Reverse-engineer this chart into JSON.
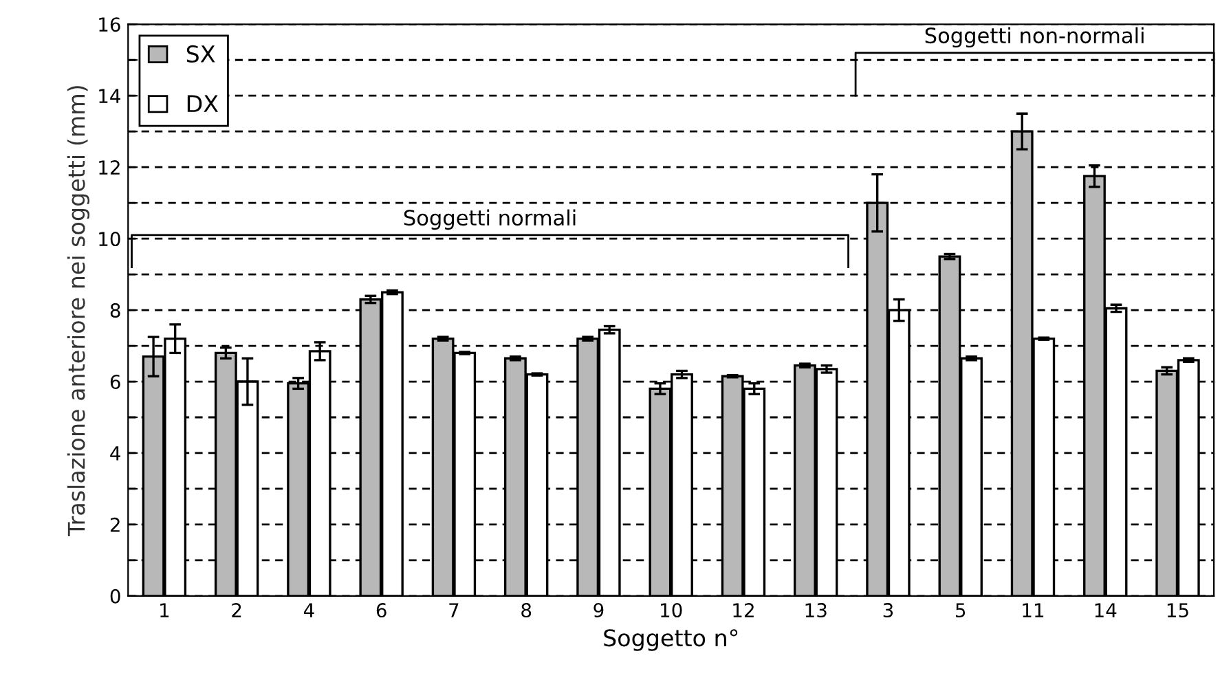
{
  "chart_data": {
    "type": "bar",
    "xlabel": "Soggetto n°",
    "ylabel": "Traslazione anteriore nei soggetti (mm)",
    "categories": [
      "1",
      "2",
      "4",
      "6",
      "7",
      "8",
      "9",
      "10",
      "12",
      "13",
      "3",
      "5",
      "11",
      "14",
      "15"
    ],
    "series": [
      {
        "name": "SX",
        "color": "#b8b8b8",
        "values": [
          6.7,
          6.8,
          5.95,
          8.3,
          7.2,
          6.65,
          7.2,
          5.8,
          6.15,
          6.45,
          11.0,
          9.5,
          13.0,
          11.75,
          6.3
        ],
        "errors": [
          0.55,
          0.15,
          0.15,
          0.1,
          0.05,
          0.05,
          0.05,
          0.15,
          0.03,
          0.05,
          0.8,
          0.07,
          0.5,
          0.3,
          0.1
        ]
      },
      {
        "name": "DX",
        "color": "#ffffff",
        "values": [
          7.2,
          6.0,
          6.85,
          8.5,
          6.8,
          6.2,
          7.45,
          6.2,
          5.8,
          6.35,
          8.0,
          6.65,
          7.2,
          8.05,
          6.6
        ],
        "errors": [
          0.4,
          0.65,
          0.25,
          0.05,
          0.03,
          0.03,
          0.1,
          0.1,
          0.15,
          0.1,
          0.3,
          0.05,
          0.03,
          0.1,
          0.05
        ]
      }
    ],
    "ylim": [
      0,
      16
    ],
    "yticks": [
      0,
      {
        "value": 1,
        "label": null
      },
      2,
      {
        "value": 3,
        "label": null
      },
      4,
      {
        "value": 5,
        "label": null
      },
      6,
      {
        "value": 7,
        "label": null
      },
      8,
      {
        "value": 9,
        "label": null
      },
      10,
      {
        "value": 11,
        "label": null
      },
      12,
      {
        "value": 13,
        "label": null
      },
      14,
      {
        "value": 15,
        "label": null
      },
      16
    ],
    "grid": "y",
    "legend": "top left",
    "annotations": [
      "Soggetti normali",
      "Soggetti non-normali"
    ]
  }
}
